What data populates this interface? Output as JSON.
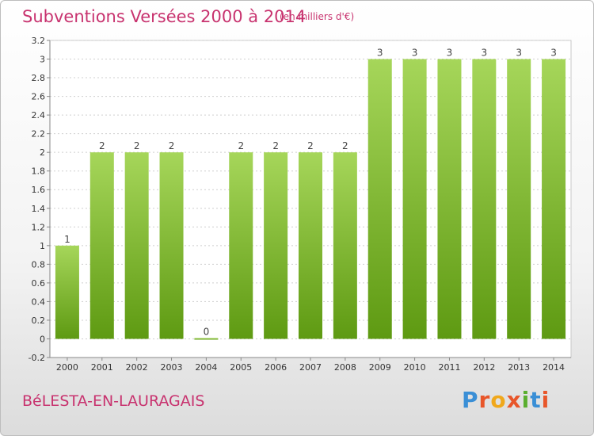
{
  "header": {
    "title": "Subventions Versées 2000 à 2014",
    "unit": "(en milliers d'€)"
  },
  "footer": {
    "commune": "BéLESTA-EN-LAURAGAIS",
    "brand": "Proxiti"
  },
  "colors": {
    "accent": "#c8336f",
    "bar_light": "#a6d65a",
    "bar_dark": "#5e9a12",
    "grid": "#cfcfcf"
  },
  "chart_data": {
    "type": "bar",
    "title": "Subventions Versées 2000 à 2014",
    "xlabel": "",
    "ylabel": "",
    "ylim": [
      -0.2,
      3.2
    ],
    "grid": true,
    "categories": [
      "2000",
      "2001",
      "2002",
      "2003",
      "2004",
      "2005",
      "2006",
      "2007",
      "2008",
      "2009",
      "2010",
      "2011",
      "2012",
      "2013",
      "2014"
    ],
    "values": [
      1,
      2,
      2,
      2,
      0,
      2,
      2,
      2,
      2,
      3,
      3,
      3,
      3,
      3,
      3
    ],
    "value_labels": [
      "1",
      "2",
      "2",
      "2",
      "0",
      "2",
      "2",
      "2",
      "2",
      "3",
      "3",
      "3",
      "3",
      "3",
      "3"
    ],
    "y_ticks": [
      "-0.2",
      "0",
      "0.2",
      "0.4",
      "0.6",
      "0.8",
      "1",
      "1.2",
      "1.4",
      "1.6",
      "1.8",
      "2",
      "2.2",
      "2.4",
      "2.6",
      "2.8",
      "3",
      "3.2"
    ]
  }
}
